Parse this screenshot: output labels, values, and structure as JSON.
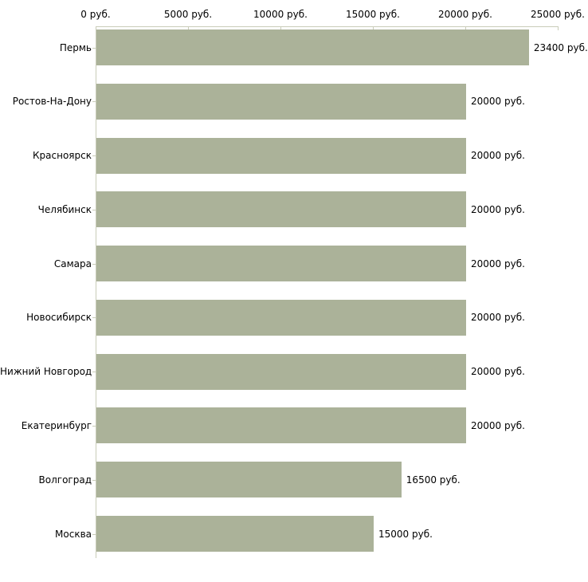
{
  "chart_data": {
    "type": "bar",
    "orientation": "horizontal",
    "title": "",
    "xlabel": "",
    "ylabel": "",
    "xlim": [
      0,
      25000
    ],
    "x_axis_position": "top",
    "x_ticks": [
      0,
      5000,
      10000,
      15000,
      20000,
      25000
    ],
    "x_tick_labels": [
      "0 руб.",
      "5000 руб.",
      "10000 руб.",
      "15000 руб.",
      "20000 руб.",
      "25000 руб."
    ],
    "categories": [
      "Пермь",
      "Ростов-На-Дону",
      "Красноярск",
      "Челябинск",
      "Самара",
      "Новосибирск",
      "Нижний Новгород",
      "Екатеринбург",
      "Волгоград",
      "Москва"
    ],
    "values": [
      23400,
      20000,
      20000,
      20000,
      20000,
      20000,
      20000,
      20000,
      16500,
      15000
    ],
    "value_labels": [
      "23400 руб.",
      "20000 руб.",
      "20000 руб.",
      "20000 руб.",
      "20000 руб.",
      "20000 руб.",
      "20000 руб.",
      "20000 руб.",
      "16500 руб.",
      "15000 руб."
    ],
    "grid": false,
    "legend": false,
    "colors": {
      "bar": "#abb299",
      "axis": "#c9ccb9",
      "text": "#000000",
      "background": "#ffffff"
    }
  }
}
